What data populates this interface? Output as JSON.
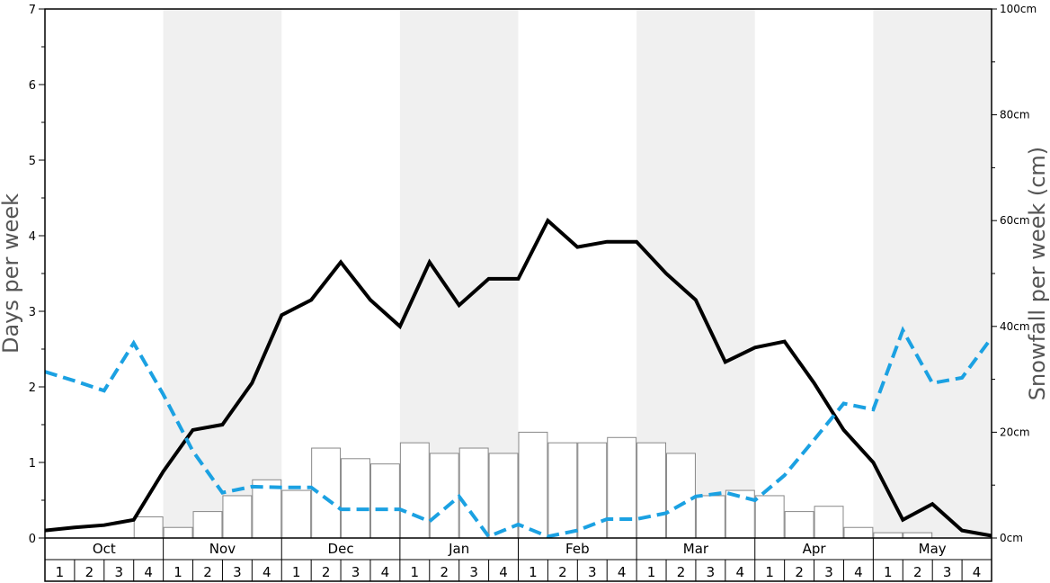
{
  "chart_data": {
    "type": "bar",
    "left_axis": {
      "title": "Days per week",
      "ylim": [
        0,
        7
      ],
      "ticks": [
        0,
        1,
        2,
        3,
        4,
        5,
        6,
        7
      ]
    },
    "right_axis": {
      "title": "Snowfall per week (cm)",
      "ylim": [
        0,
        100
      ],
      "ticks": [
        0,
        20,
        40,
        60,
        80,
        100
      ],
      "tick_labels": [
        "0cm",
        "20cm",
        "40cm",
        "60cm",
        "80cm",
        "100cm"
      ]
    },
    "months": [
      "Oct",
      "Nov",
      "Dec",
      "Jan",
      "Feb",
      "Mar",
      "Apr",
      "May"
    ],
    "week_labels": [
      "1",
      "2",
      "3",
      "4"
    ],
    "shaded_months": [
      "Nov",
      "Jan",
      "Mar",
      "May"
    ],
    "shade_color": "#f0f0f0",
    "series": [
      {
        "type": "bar",
        "axis": "right",
        "color": "#ffffff",
        "stroke": "#888888",
        "values": [
          0,
          0,
          0,
          4,
          2,
          5,
          8,
          11,
          9,
          17,
          15,
          14,
          18,
          16,
          17,
          16,
          20,
          18,
          18,
          19,
          18,
          16,
          8,
          9,
          8,
          5,
          6,
          2,
          1,
          1,
          0,
          0
        ]
      },
      {
        "type": "line",
        "axis": "left",
        "color": "#000000",
        "style": "solid",
        "values": [
          0.1,
          0.14,
          0.17,
          0.24,
          0.88,
          1.43,
          1.5,
          2.05,
          2.95,
          3.15,
          3.65,
          3.15,
          2.8,
          3.65,
          3.08,
          3.43,
          3.43,
          4.2,
          3.85,
          3.92,
          3.92,
          3.5,
          3.15,
          2.33,
          2.52,
          2.6,
          2.05,
          1.43,
          1.0,
          0.24,
          0.45,
          0.1,
          0.03
        ]
      },
      {
        "type": "line",
        "axis": "left",
        "color": "#1ba1e2",
        "style": "dashed",
        "values": [
          2.2,
          2.08,
          1.95,
          2.58,
          1.9,
          1.15,
          0.6,
          0.68,
          0.67,
          0.67,
          0.38,
          0.38,
          0.38,
          0.22,
          0.55,
          0.02,
          0.18,
          0.02,
          0.1,
          0.25,
          0.25,
          0.33,
          0.55,
          0.6,
          0.5,
          0.83,
          1.3,
          1.78,
          1.7,
          2.75,
          2.05,
          2.12,
          2.65
        ]
      }
    ]
  }
}
